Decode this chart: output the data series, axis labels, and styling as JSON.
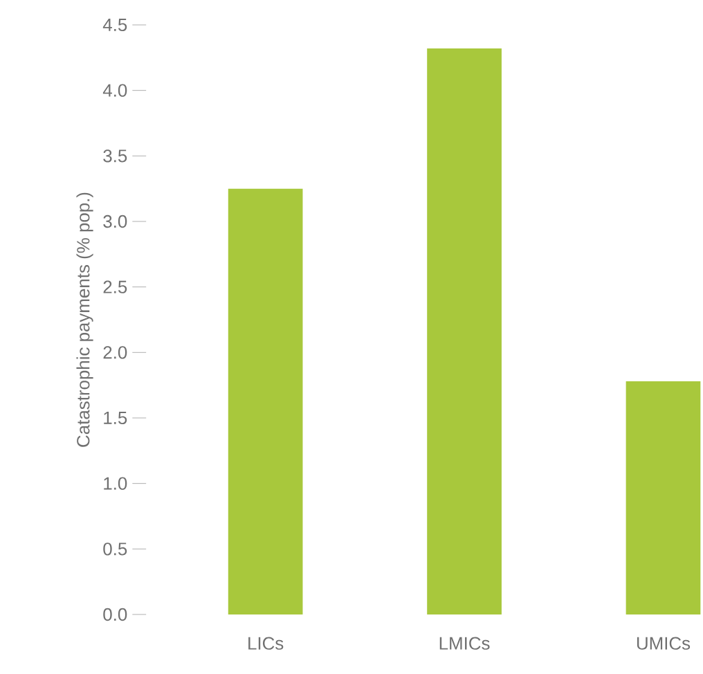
{
  "chart_data": {
    "type": "bar",
    "ylabel": "Catastrophic payments (% pop.)",
    "categories": [
      "LICs",
      "LMICs",
      "UMICs"
    ],
    "values": [
      3.25,
      4.32,
      1.78
    ],
    "color": "#a8c83c",
    "ylim": [
      0,
      4.5
    ],
    "yticks": [
      {
        "value": 0,
        "label": "0.0"
      },
      0.5,
      {
        "value": 1,
        "label": "1.0"
      },
      1.5,
      {
        "value": 2,
        "label": "2.0"
      },
      2.5,
      {
        "value": 3,
        "label": "3.0"
      },
      3.5,
      {
        "value": 4,
        "label": "4.0"
      },
      4.5
    ],
    "grid": false
  }
}
